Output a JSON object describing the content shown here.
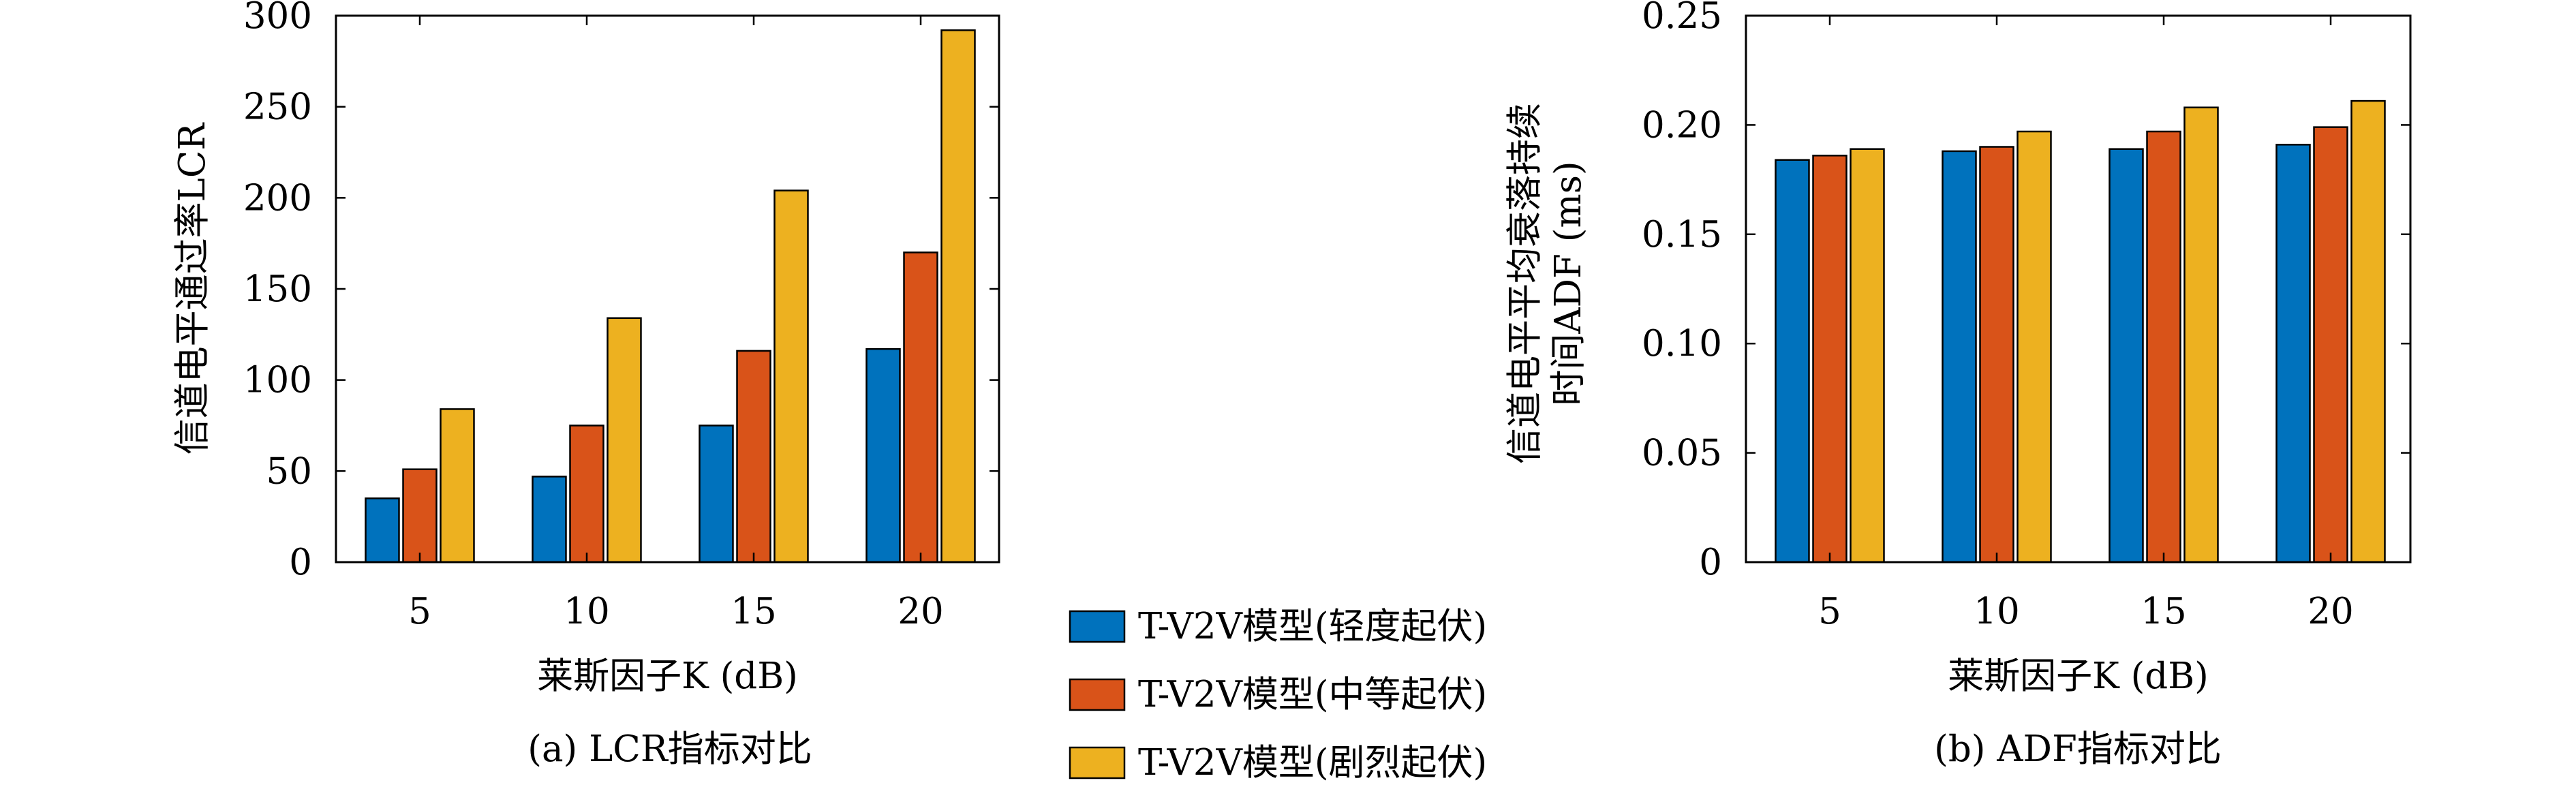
{
  "chart_data": [
    {
      "type": "bar",
      "caption": "(a) LCR指标对比",
      "xlabel": "莱斯因子K (dB)",
      "ylabel": "信道电平通过率LCR",
      "categories": [
        "5",
        "10",
        "15",
        "20"
      ],
      "ylim": [
        0,
        300
      ],
      "yticks": [
        "0",
        "50",
        "100",
        "150",
        "200",
        "250",
        "300"
      ],
      "series": [
        {
          "name": "T-V2V模型(轻度起伏)",
          "values": [
            35,
            47,
            75,
            117
          ]
        },
        {
          "name": "T-V2V模型(中等起伏)",
          "values": [
            51,
            75,
            116,
            170
          ]
        },
        {
          "name": "T-V2V模型(剧烈起伏)",
          "values": [
            84,
            134,
            204,
            292
          ]
        }
      ],
      "grid": false
    },
    {
      "type": "bar",
      "caption": "(b) ADF指标对比",
      "xlabel": "莱斯因子K (dB)",
      "ylabel_lines": [
        "信道电平平均衰落持续",
        "时间ADF (ms)"
      ],
      "categories": [
        "5",
        "10",
        "15",
        "20"
      ],
      "ylim": [
        0,
        0.25
      ],
      "yticks": [
        "0",
        "0.05",
        "0.10",
        "0.15",
        "0.20",
        "0.25"
      ],
      "series": [
        {
          "name": "T-V2V模型(轻度起伏)",
          "values": [
            0.184,
            0.188,
            0.189,
            0.191
          ]
        },
        {
          "name": "T-V2V模型(中等起伏)",
          "values": [
            0.186,
            0.19,
            0.197,
            0.199
          ]
        },
        {
          "name": "T-V2V模型(剧烈起伏)",
          "values": [
            0.189,
            0.197,
            0.208,
            0.211
          ]
        }
      ],
      "grid": false
    }
  ],
  "legend": {
    "placement": "bottom-center",
    "items": [
      {
        "label": "T-V2V模型(轻度起伏)",
        "color": "#0072BD"
      },
      {
        "label": "T-V2V模型(中等起伏)",
        "color": "#D95319"
      },
      {
        "label": "T-V2V模型(剧烈起伏)",
        "color": "#EDB120"
      }
    ]
  }
}
